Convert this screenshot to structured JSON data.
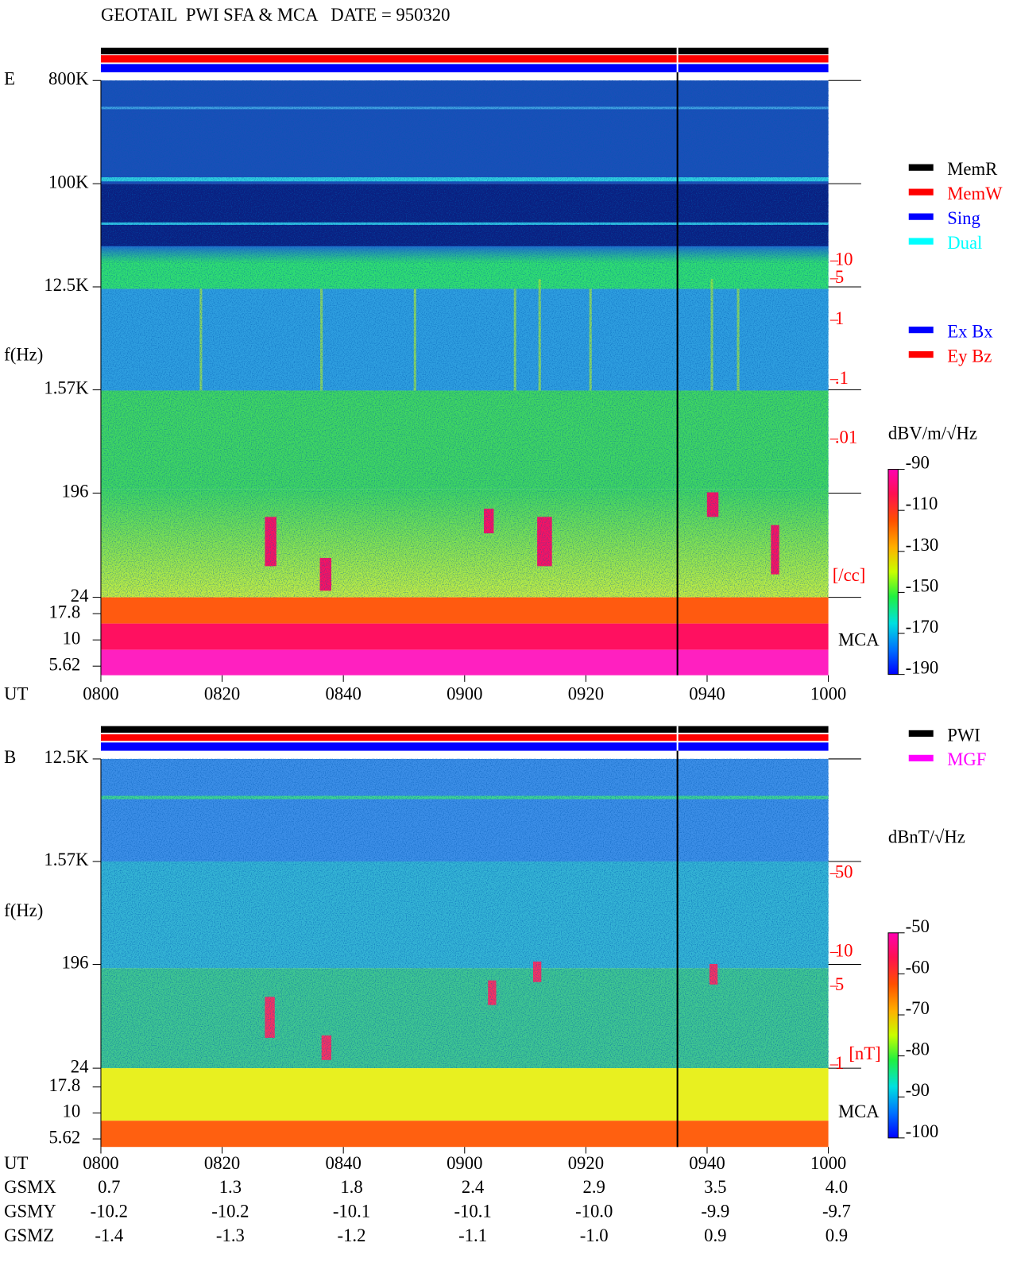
{
  "title": "GEOTAIL  PWI SFA & MCA   DATE = 950320",
  "chart_data": [
    {
      "type": "spectrogram",
      "panel_label": "E",
      "ylabel": "f(Hz)",
      "xlabel": "UT",
      "log_y": true,
      "ylim": [
        24,
        800000
      ],
      "yticks": [
        {
          "value": 800000,
          "label": "800K"
        },
        {
          "value": 100000,
          "label": "100K"
        },
        {
          "value": 12500,
          "label": "12.5K"
        },
        {
          "value": 1570,
          "label": "1.57K"
        },
        196,
        24
      ],
      "mca_label": "MCA",
      "mca_ylim": [
        4.6,
        25.5
      ],
      "mca_yticks": [
        17.8,
        10,
        5.62
      ],
      "xticks": [
        "0800",
        "0820",
        "0840",
        "0900",
        "0920",
        "0940",
        "1000"
      ],
      "y2label": "[/cc]",
      "y2color": "#ff0000",
      "y2lim": [
        0.01,
        10
      ],
      "y2ticks": [
        10,
        5,
        1,
        {
          "value": 0.1,
          "label": ".1"
        },
        {
          "value": 0.01,
          "label": ".01"
        }
      ],
      "zlabel": "dBV/m/√Hz",
      "zlim": [
        -190,
        -90
      ],
      "zticks": [
        -90,
        -110,
        -130,
        -150,
        -170,
        -190
      ],
      "legend": [
        {
          "name": "MemR",
          "color": "#000000"
        },
        {
          "name": "MemW",
          "color": "#ff0000"
        },
        {
          "name": "Sing",
          "color": "#0000ff"
        },
        {
          "name": "Dual",
          "color": "#00ffff"
        }
      ],
      "legend2": [
        {
          "name": "Ex Bx",
          "color": "#0000ff"
        },
        {
          "name": "Ey Bz",
          "color": "#ff0000"
        }
      ]
    },
    {
      "type": "spectrogram",
      "panel_label": "B",
      "ylabel": "f(Hz)",
      "xlabel": "UT",
      "log_y": true,
      "ylim": [
        24,
        12500
      ],
      "yticks": [
        {
          "value": 12500,
          "label": "12.5K"
        },
        {
          "value": 1570,
          "label": "1.57K"
        },
        196,
        24
      ],
      "mca_label": "MCA",
      "mca_ylim": [
        4.7,
        27
      ],
      "mca_yticks": [
        17.8,
        10,
        5.62
      ],
      "xticks": [
        "0800",
        "0820",
        "0840",
        "0900",
        "0920",
        "0940",
        "1000"
      ],
      "y2label": "[nT]",
      "y2color": "#ff0000",
      "y2lim": [
        1,
        50
      ],
      "y2ticks": [
        50,
        10,
        5,
        1
      ],
      "zlabel": "dBnT/√Hz",
      "zlim": [
        -100,
        -50
      ],
      "zticks": [
        -50,
        -60,
        -70,
        -80,
        -90,
        -100
      ],
      "legend": [
        {
          "name": "PWI",
          "color": "#000000"
        },
        {
          "name": "MGF",
          "color": "#ff00ff"
        }
      ]
    }
  ],
  "orbit": {
    "rows": [
      {
        "label": "GSMX",
        "values": [
          "0.7",
          "1.3",
          "1.8",
          "2.4",
          "2.9",
          "3.5",
          "4.0"
        ]
      },
      {
        "label": "GSMY",
        "values": [
          "-10.2",
          "-10.2",
          "-10.1",
          "-10.1",
          "-10.0",
          "-9.9",
          "-9.7"
        ]
      },
      {
        "label": "GSMZ",
        "values": [
          "-1.4",
          "-1.3",
          "-1.2",
          "-1.1",
          "-1.0",
          "0.9",
          "0.9"
        ]
      }
    ]
  }
}
